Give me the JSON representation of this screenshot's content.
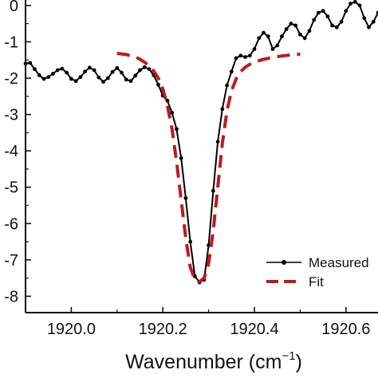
{
  "chart_data": {
    "type": "line",
    "title": "",
    "xlabel_main": "Wavenumber (cm",
    "xlabel_sup": "−1",
    "xlabel_tail": ")",
    "ylabel": "",
    "xlim": [
      1919.9,
      1920.67
    ],
    "ylim": [
      -8.45,
      0.15
    ],
    "x_ticks": [
      {
        "value": 1920.0,
        "label": "1920.0"
      },
      {
        "value": 1920.2,
        "label": "1920.2"
      },
      {
        "value": 1920.4,
        "label": "1920.4"
      },
      {
        "value": 1920.6,
        "label": "1920.6"
      }
    ],
    "y_ticks": [
      {
        "value": 0,
        "label": "0"
      },
      {
        "value": -1,
        "label": "-1"
      },
      {
        "value": -2,
        "label": "-2"
      },
      {
        "value": -3,
        "label": "-3"
      },
      {
        "value": -4,
        "label": "-4"
      },
      {
        "value": -5,
        "label": "-5"
      },
      {
        "value": -6,
        "label": "-6"
      },
      {
        "value": -7,
        "label": "-7"
      },
      {
        "value": -8,
        "label": "-8"
      }
    ],
    "legend": {
      "placement": "bottom-right",
      "entries": [
        {
          "series": "Measured",
          "label": "Measured"
        },
        {
          "series": "Fit",
          "label": "Fit"
        }
      ]
    },
    "series": [
      {
        "name": "Measured",
        "color": "#000000",
        "style": "line-with-dots",
        "x": [
          1919.9,
          1919.91,
          1919.92,
          1919.93,
          1919.94,
          1919.95,
          1919.96,
          1919.97,
          1919.98,
          1919.99,
          1920.0,
          1920.01,
          1920.02,
          1920.03,
          1920.04,
          1920.05,
          1920.06,
          1920.07,
          1920.08,
          1920.09,
          1920.1,
          1920.11,
          1920.12,
          1920.13,
          1920.14,
          1920.15,
          1920.16,
          1920.17,
          1920.18,
          1920.19,
          1920.2,
          1920.21,
          1920.22,
          1920.23,
          1920.24,
          1920.25,
          1920.26,
          1920.27,
          1920.28,
          1920.29,
          1920.3,
          1920.31,
          1920.32,
          1920.33,
          1920.34,
          1920.35,
          1920.36,
          1920.37,
          1920.38,
          1920.39,
          1920.4,
          1920.41,
          1920.42,
          1920.43,
          1920.44,
          1920.45,
          1920.46,
          1920.47,
          1920.48,
          1920.49,
          1920.5,
          1920.51,
          1920.52,
          1920.53,
          1920.54,
          1920.55,
          1920.56,
          1920.57,
          1920.58,
          1920.59,
          1920.6,
          1920.61,
          1920.62,
          1920.63,
          1920.64,
          1920.65,
          1920.66,
          1920.67
        ],
        "y": [
          -1.6,
          -1.58,
          -1.75,
          -1.92,
          -2.02,
          -1.97,
          -1.88,
          -1.78,
          -1.74,
          -1.85,
          -2.02,
          -2.08,
          -1.97,
          -1.82,
          -1.71,
          -1.78,
          -1.98,
          -2.1,
          -2.0,
          -1.83,
          -1.72,
          -1.85,
          -2.04,
          -2.08,
          -1.93,
          -1.78,
          -1.7,
          -1.75,
          -1.92,
          -2.18,
          -2.48,
          -2.62,
          -2.95,
          -3.4,
          -4.2,
          -5.3,
          -6.5,
          -7.45,
          -7.62,
          -7.55,
          -6.6,
          -5.1,
          -3.75,
          -2.85,
          -2.2,
          -1.82,
          -1.45,
          -1.38,
          -1.42,
          -1.38,
          -1.2,
          -0.9,
          -0.75,
          -0.85,
          -1.2,
          -1.1,
          -0.85,
          -0.65,
          -0.5,
          -0.55,
          -0.8,
          -0.9,
          -0.7,
          -0.4,
          -0.2,
          -0.15,
          -0.3,
          -0.55,
          -0.6,
          -0.45,
          -0.15,
          0.05,
          0.1,
          0.0,
          -0.35,
          -0.6,
          -0.45,
          -0.2
        ]
      },
      {
        "name": "Fit",
        "color": "#c0191f",
        "style": "dashed-line",
        "x": [
          1920.1,
          1920.12,
          1920.14,
          1920.15,
          1920.16,
          1920.17,
          1920.18,
          1920.19,
          1920.2,
          1920.21,
          1920.22,
          1920.23,
          1920.24,
          1920.25,
          1920.26,
          1920.27,
          1920.28,
          1920.29,
          1920.3,
          1920.31,
          1920.32,
          1920.33,
          1920.34,
          1920.35,
          1920.36,
          1920.37,
          1920.38,
          1920.39,
          1920.4,
          1920.42,
          1920.44,
          1920.46,
          1920.48,
          1920.5
        ],
        "y": [
          -1.32,
          -1.35,
          -1.42,
          -1.48,
          -1.56,
          -1.66,
          -1.8,
          -2.0,
          -2.3,
          -2.75,
          -3.4,
          -4.3,
          -5.35,
          -6.4,
          -7.2,
          -7.55,
          -7.6,
          -7.5,
          -7.1,
          -6.2,
          -5.0,
          -3.8,
          -2.9,
          -2.35,
          -2.02,
          -1.82,
          -1.7,
          -1.62,
          -1.56,
          -1.48,
          -1.43,
          -1.39,
          -1.36,
          -1.34
        ]
      }
    ]
  }
}
